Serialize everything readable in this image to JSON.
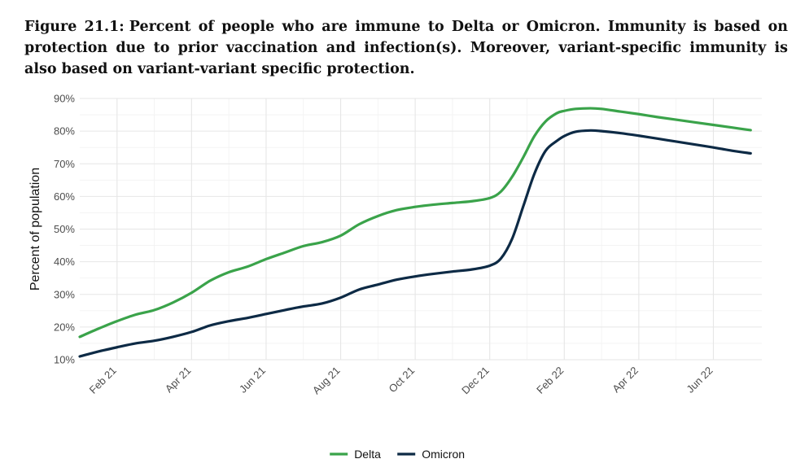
{
  "caption": {
    "label": "Figure 21.1:",
    "text": "Percent of people who are immune to Delta or Omicron. Immunity is based on protection due to prior vaccination and infection(s). Moreover, variant-specific immunity is also based on variant-variant specific protection."
  },
  "chart_data": {
    "type": "line",
    "title": "",
    "xlabel": "",
    "ylabel": "Percent of population",
    "xlim": [
      0.0,
      18.3
    ],
    "ylim": [
      10,
      90
    ],
    "y_ticks": [
      10,
      20,
      30,
      40,
      50,
      60,
      70,
      80,
      90
    ],
    "y_tick_labels": [
      "10%",
      "20%",
      "30%",
      "40%",
      "50%",
      "60%",
      "70%",
      "80%",
      "90%"
    ],
    "x_ticks": [
      1,
      3,
      5,
      7,
      9,
      11,
      13,
      15,
      17
    ],
    "x_tick_labels": [
      "Feb 21",
      "Apr 21",
      "Jun 21",
      "Aug 21",
      "Oct 21",
      "Dec 21",
      "Feb 22",
      "Apr 22",
      "Jun 22"
    ],
    "grid": true,
    "legend": "bottom",
    "x": [
      0.0,
      0.5,
      1.0,
      1.5,
      2.0,
      2.5,
      3.0,
      3.5,
      4.0,
      4.5,
      5.0,
      5.5,
      6.0,
      6.5,
      7.0,
      7.5,
      8.0,
      8.5,
      9.0,
      9.5,
      10.0,
      10.5,
      11.0,
      11.3,
      11.6,
      11.9,
      12.2,
      12.5,
      12.8,
      13.0,
      13.3,
      13.7,
      14.0,
      14.5,
      15.0,
      15.5,
      16.0,
      16.5,
      17.0,
      17.5,
      18.0
    ],
    "series": [
      {
        "name": "Delta",
        "color": "#3aa34a",
        "values": [
          17.0,
          19.5,
          21.8,
          23.8,
          25.2,
          27.5,
          30.5,
          34.2,
          36.8,
          38.5,
          40.8,
          42.8,
          44.8,
          46.0,
          48.0,
          51.5,
          54.0,
          55.8,
          56.8,
          57.5,
          58.0,
          58.5,
          59.5,
          61.5,
          66.0,
          72.0,
          78.5,
          83.0,
          85.5,
          86.2,
          86.8,
          87.0,
          86.8,
          86.0,
          85.2,
          84.3,
          83.5,
          82.7,
          81.9,
          81.1,
          80.3
        ]
      },
      {
        "name": "Omicron",
        "color": "#0d2a45",
        "values": [
          11.0,
          12.5,
          13.8,
          15.0,
          15.8,
          17.0,
          18.5,
          20.5,
          21.8,
          22.8,
          24.0,
          25.2,
          26.3,
          27.2,
          29.0,
          31.5,
          33.0,
          34.5,
          35.5,
          36.3,
          37.0,
          37.6,
          38.8,
          41.0,
          47.0,
          57.0,
          67.0,
          74.0,
          77.0,
          78.5,
          79.8,
          80.2,
          80.0,
          79.4,
          78.6,
          77.7,
          76.8,
          75.9,
          75.0,
          74.0,
          73.2
        ]
      }
    ]
  }
}
